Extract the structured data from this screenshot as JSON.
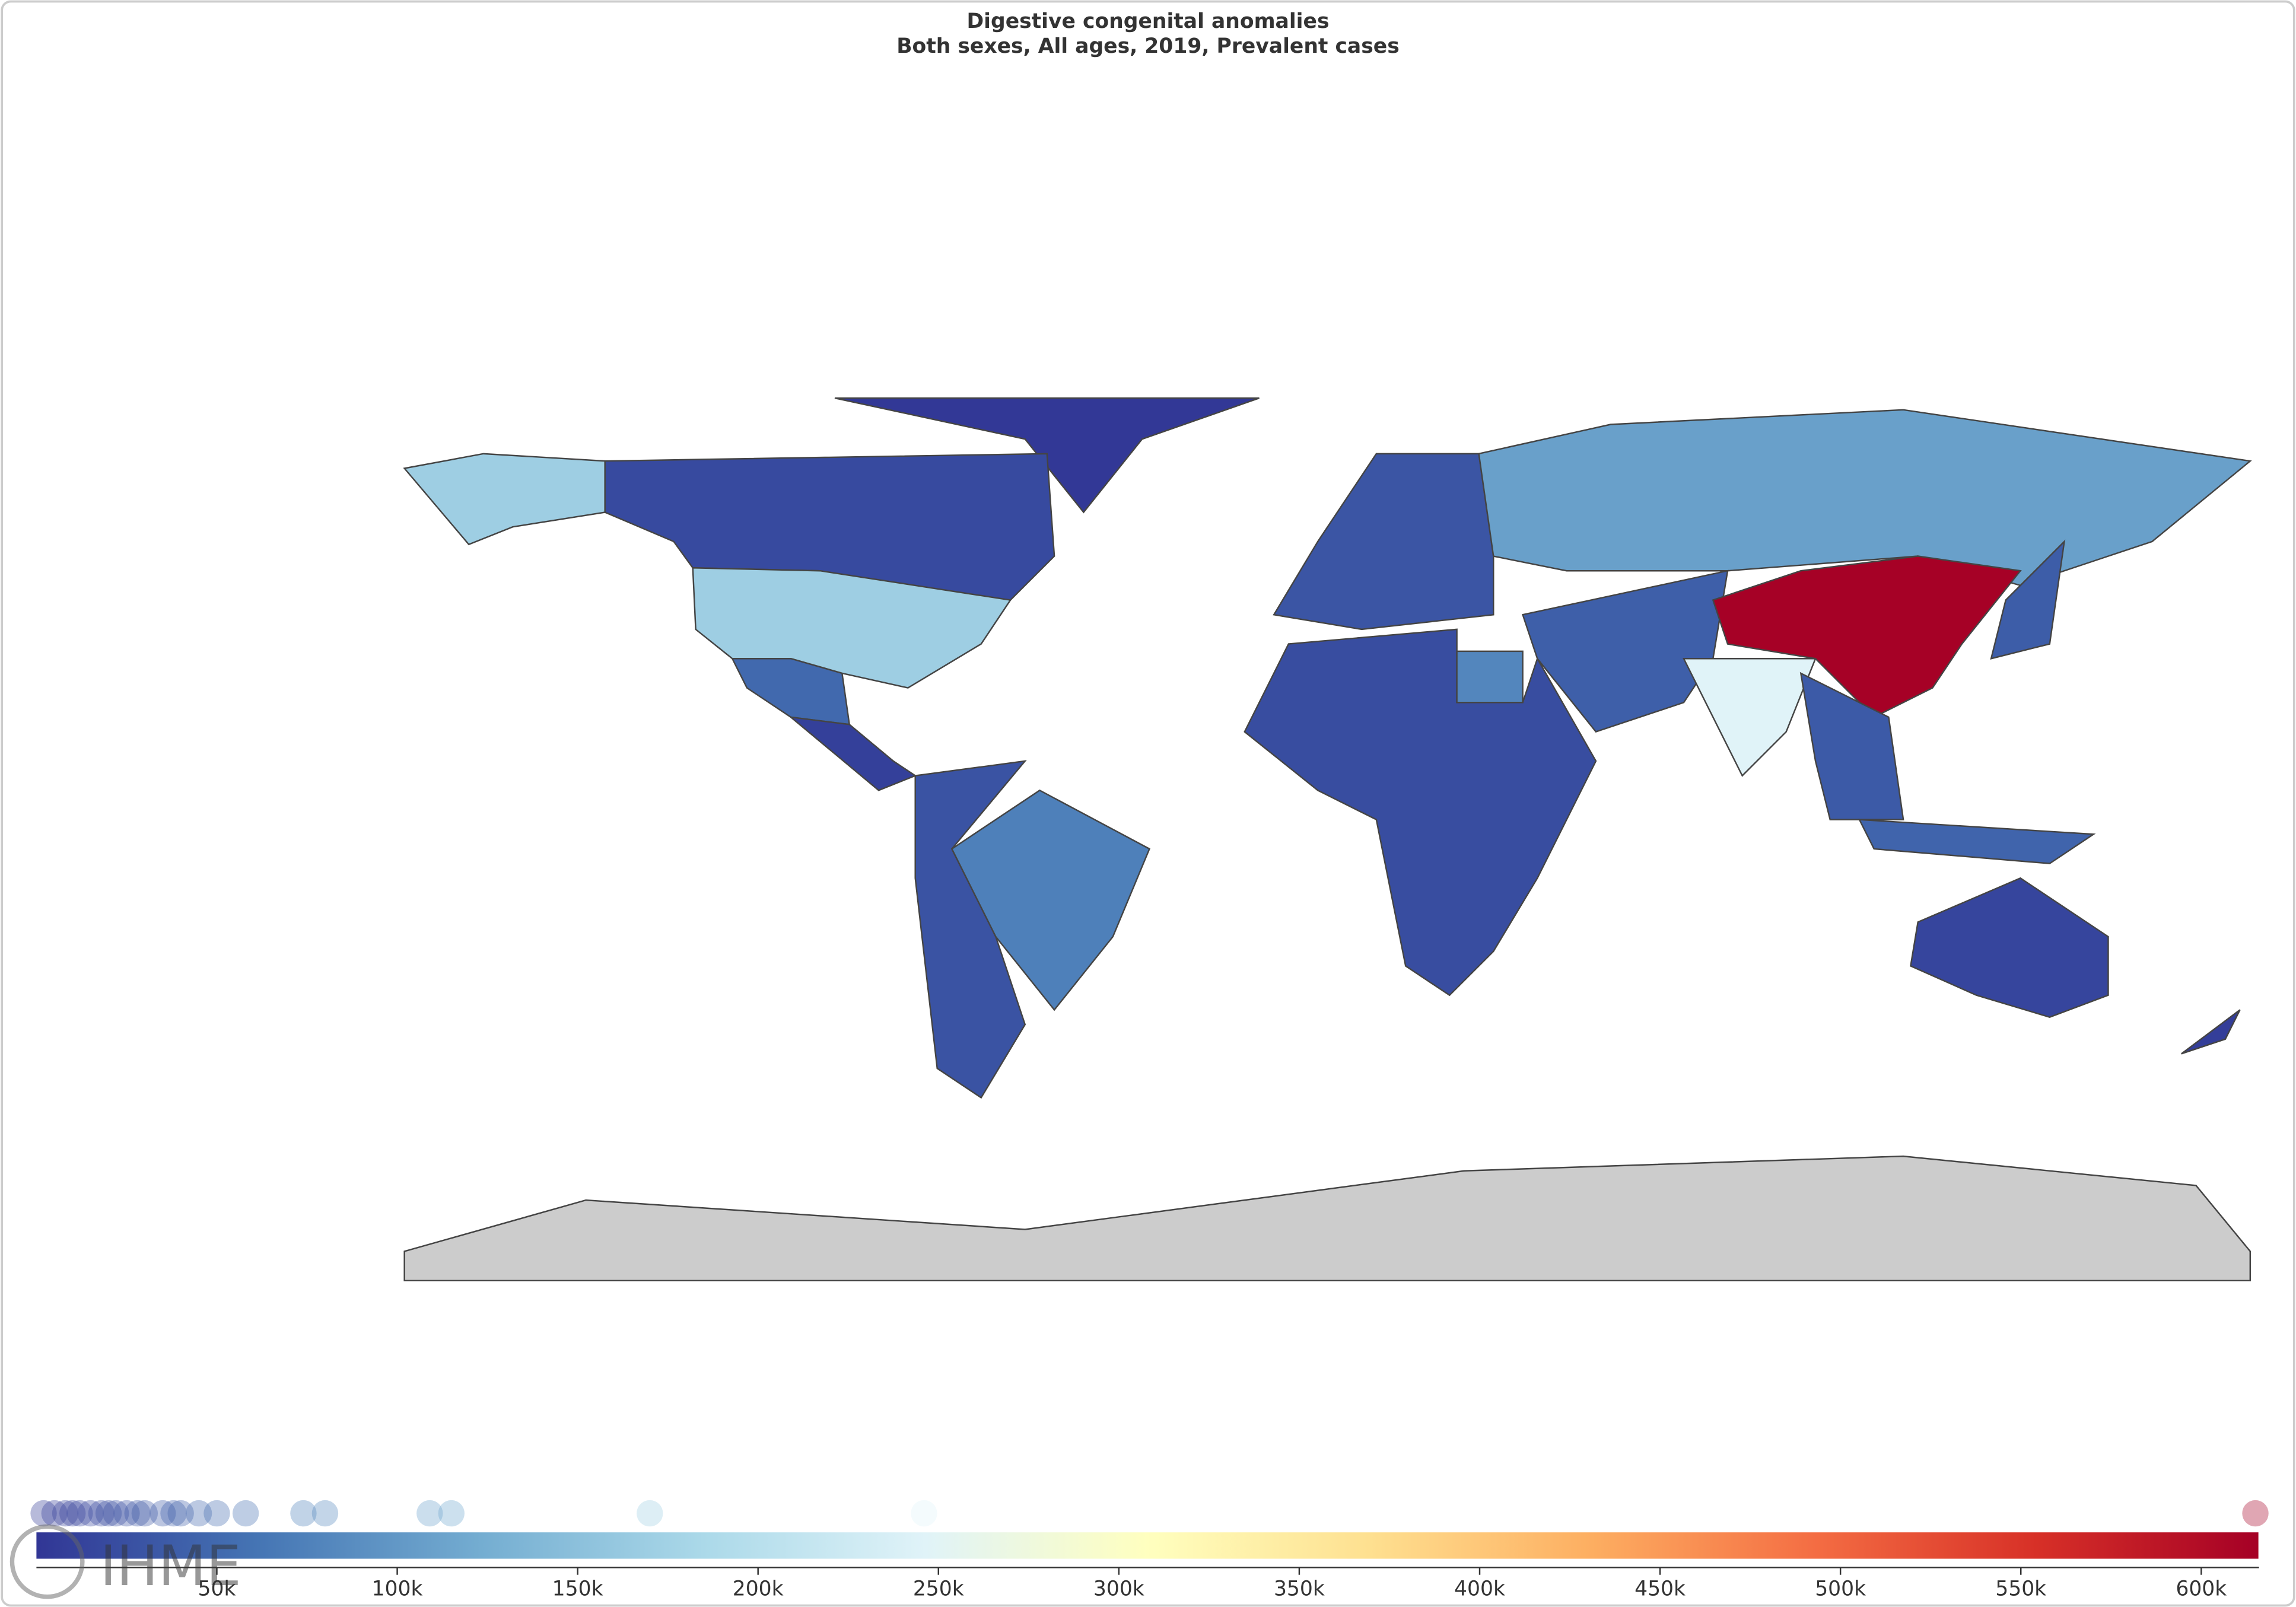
{
  "chart_data": {
    "type": "choropleth",
    "title": "Digestive congenital anomalies",
    "subtitle": "Both sexes, All ages, 2019, Prevalent cases",
    "values": [
      2000,
      5000,
      8000,
      10000,
      12000,
      15000,
      18000,
      20000,
      22000,
      25000,
      28000,
      30000,
      35000,
      38000,
      40000,
      45000,
      50000,
      58000,
      74000,
      80000,
      109000,
      115000,
      170000,
      246000,
      615000
    ],
    "xlim": [
      0,
      616000
    ],
    "xticks": [
      {
        "value": 50000,
        "label": "50k"
      },
      {
        "value": 100000,
        "label": "100k"
      },
      {
        "value": 150000,
        "label": "150k"
      },
      {
        "value": 200000,
        "label": "200k"
      },
      {
        "value": 250000,
        "label": "250k"
      },
      {
        "value": 300000,
        "label": "300k"
      },
      {
        "value": 350000,
        "label": "350k"
      },
      {
        "value": 400000,
        "label": "400k"
      },
      {
        "value": 450000,
        "label": "450k"
      },
      {
        "value": 500000,
        "label": "500k"
      },
      {
        "value": 550000,
        "label": "550k"
      },
      {
        "value": 600000,
        "label": "600k"
      }
    ],
    "colormap": [
      "#313695",
      "#4575b4",
      "#74add1",
      "#abd9e9",
      "#e0f3f8",
      "#ffffbf",
      "#fee090",
      "#fdae61",
      "#f46d43",
      "#d73027",
      "#a50026"
    ],
    "logo_text": "IHME"
  }
}
